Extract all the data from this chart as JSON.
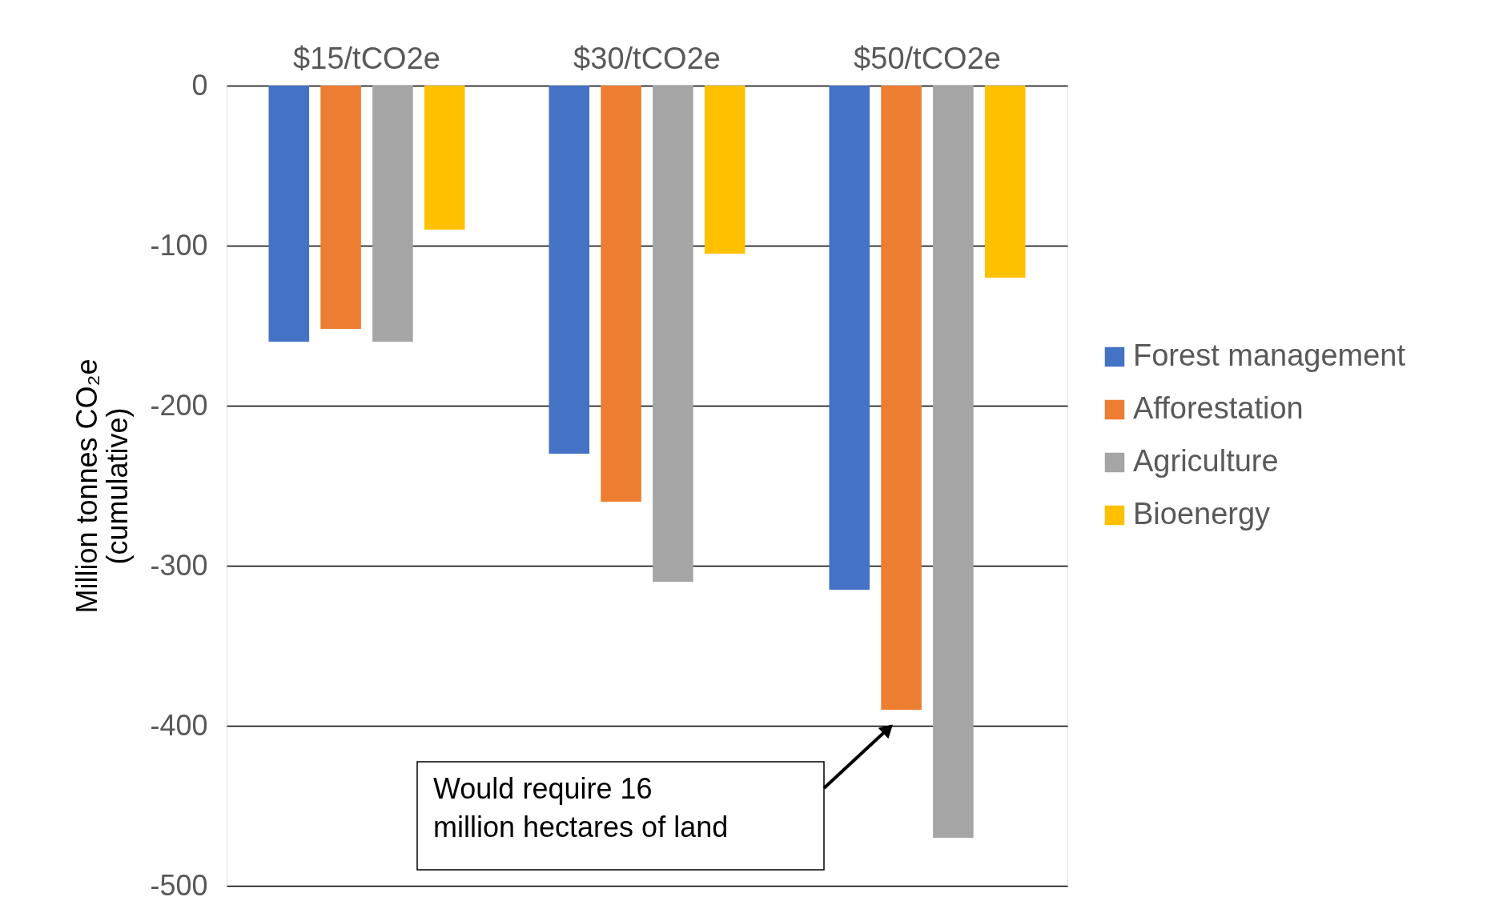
{
  "chart_data": {
    "type": "bar",
    "categories": [
      "$15/tCO2e",
      "$30/tCO2e",
      "$50/tCO2e"
    ],
    "ylabel": "Million tonnes CO₂e\n(cumulative)",
    "series": [
      {
        "name": "Forest management",
        "color": "#4472c4",
        "values": [
          -160,
          -230,
          -315
        ]
      },
      {
        "name": "Afforestation",
        "color": "#ed7d31",
        "values": [
          -152,
          -260,
          -390
        ]
      },
      {
        "name": "Agriculture",
        "color": "#a5a5a5",
        "values": [
          -160,
          -310,
          -470
        ]
      },
      {
        "name": "Bioenergy",
        "color": "#ffc000",
        "values": [
          -90,
          -105,
          -120
        ]
      }
    ],
    "ylim": [
      -500,
      0
    ],
    "yticks": [
      -500,
      -400,
      -300,
      -200,
      -100,
      0
    ],
    "grid": "y",
    "legend": "right",
    "annotations": [
      "Would require 16\nmillion hectares of land"
    ]
  }
}
